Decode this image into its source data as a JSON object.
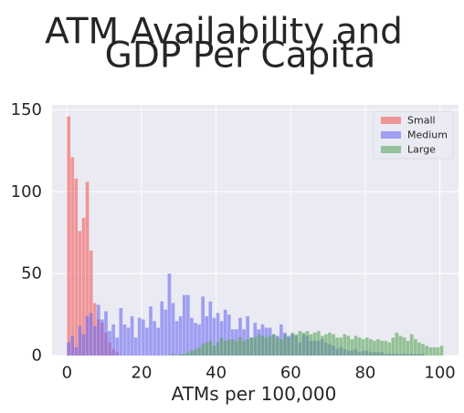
{
  "chart_data": {
    "type": "bar",
    "title_lines": [
      "ATM Availability and",
      "GDP Per Capita"
    ],
    "xlabel": "ATMs per 100,000",
    "ylabel": "",
    "xlim": [
      -4,
      105
    ],
    "ylim": [
      0,
      153
    ],
    "x_ticks": [
      0,
      20,
      40,
      60,
      80,
      100
    ],
    "y_ticks": [
      0,
      50,
      100,
      150
    ],
    "bin_width": 1,
    "grid": true,
    "legend_position": "top-right",
    "series": [
      {
        "name": "Small",
        "color": "#f15b5b",
        "start": 0,
        "values": [
          146,
          121,
          108,
          76,
          84,
          106,
          64,
          32,
          22,
          20,
          14,
          8,
          4,
          2
        ]
      },
      {
        "name": "Medium",
        "color": "#6a6af4",
        "start": 0,
        "values": [
          8,
          12,
          5,
          18,
          13,
          24,
          26,
          18,
          31,
          22,
          27,
          15,
          19,
          11,
          29,
          19,
          17,
          24,
          11,
          23,
          22,
          17,
          30,
          21,
          17,
          33,
          28,
          50,
          32,
          21,
          24,
          37,
          37,
          23,
          20,
          19,
          36,
          24,
          33,
          23,
          26,
          21,
          28,
          25,
          16,
          16,
          23,
          16,
          24,
          11,
          20,
          16,
          19,
          17,
          17,
          13,
          12,
          19,
          14,
          12,
          13,
          12,
          8,
          13,
          12,
          9,
          9,
          9,
          10,
          8,
          7,
          6,
          4,
          5,
          4,
          3,
          3,
          4,
          2,
          3,
          3,
          2,
          2,
          2,
          2,
          1,
          1,
          1,
          1,
          1,
          1,
          1,
          1,
          1,
          1,
          1,
          0,
          0,
          0,
          0,
          0
        ]
      },
      {
        "name": "Large",
        "color": "#5aa55a",
        "start": 0,
        "values": [
          0,
          0,
          0,
          0,
          0,
          0,
          0,
          0,
          0,
          0,
          0,
          0,
          0,
          0,
          0,
          0,
          0,
          0,
          0,
          0,
          0,
          0,
          0,
          0,
          0,
          0,
          0,
          0,
          1,
          0,
          1,
          1,
          2,
          3,
          4,
          5,
          7,
          8,
          9,
          6,
          8,
          11,
          9,
          10,
          10,
          9,
          11,
          9,
          10,
          11,
          11,
          13,
          12,
          11,
          12,
          13,
          11,
          10,
          13,
          11,
          14,
          13,
          15,
          14,
          15,
          13,
          14,
          15,
          12,
          13,
          14,
          13,
          11,
          11,
          13,
          12,
          10,
          12,
          11,
          10,
          11,
          10,
          9,
          10,
          9,
          9,
          8,
          11,
          14,
          12,
          11,
          9,
          13,
          10,
          8,
          7,
          6,
          5,
          5,
          5,
          6
        ]
      }
    ]
  }
}
